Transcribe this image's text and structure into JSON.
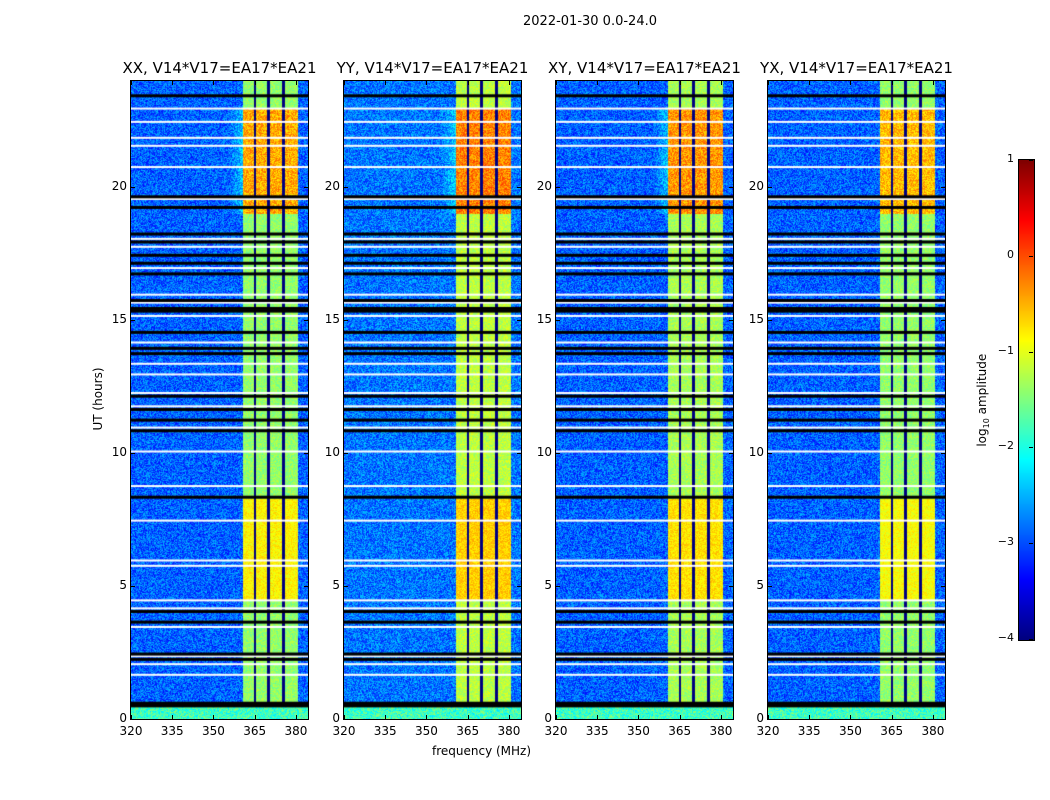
{
  "chart_data": {
    "type": "heatmap",
    "title": "2022-01-30 0.0-24.0",
    "xlabel": "frequency (MHz)",
    "ylabel": "UT (hours)",
    "xlim": [
      320,
      384.4
    ],
    "ylim": [
      0,
      24
    ],
    "xticks": [
      "320",
      "335",
      "350",
      "365",
      "380"
    ],
    "xtick_values": [
      320,
      335,
      350,
      365,
      380
    ],
    "yticks": [
      "0",
      "5",
      "10",
      "15",
      "20"
    ],
    "ytick_values": [
      0,
      5,
      10,
      15,
      20
    ],
    "panels": [
      {
        "title": "XX, V14*V17=EA17*EA21",
        "background_log_amp": -2.9,
        "band_log_amp": -1.4,
        "band_peak_log_amp": -0.3
      },
      {
        "title": "YY, V14*V17=EA17*EA21",
        "background_log_amp": -2.8,
        "band_log_amp": -1.2,
        "band_peak_log_amp": -0.1
      },
      {
        "title": "XY, V14*V17=EA17*EA21",
        "background_log_amp": -2.9,
        "band_log_amp": -1.3,
        "band_peak_log_amp": -0.2
      },
      {
        "title": "YX, V14*V17=EA17*EA21",
        "background_log_amp": -2.9,
        "band_log_amp": -1.4,
        "band_peak_log_amp": -0.4
      }
    ],
    "rfi_band_mhz": [
      360.7,
      380.4
    ],
    "rfi_subband_edges_mhz": [
      365.0,
      369.8,
      375.3
    ],
    "bright_periods_ut": [
      [
        19.0,
        23.0
      ],
      [
        4.5,
        8.3
      ]
    ],
    "flagged_white_ut": [
      0.6,
      1.7,
      2.1,
      2.4,
      3.5,
      4.2,
      4.5,
      5.8,
      6.0,
      7.5,
      8.8,
      10.1,
      11.0,
      11.8,
      12.3,
      13.0,
      13.4,
      14.2,
      15.2,
      15.7,
      16.0,
      17.0,
      17.8,
      18.1,
      19.6,
      20.8,
      21.6,
      21.9,
      22.5,
      23.0
    ],
    "flagged_black_ut": [
      0.55,
      2.3,
      2.5,
      3.7,
      4.1,
      8.4,
      10.9,
      11.3,
      11.7,
      12.2,
      13.8,
      14.0,
      14.6,
      15.4,
      15.5,
      15.8,
      16.8,
      17.2,
      17.5,
      18.0,
      18.3,
      19.3,
      19.7,
      23.5
    ],
    "colorbar": {
      "label": "log10 amplitude",
      "label_main": "log",
      "label_sub": "10",
      "label_rest": " amplitude",
      "range": [
        -4,
        1
      ],
      "ticks": [
        "1",
        "0",
        "−1",
        "−2",
        "−3",
        "−4"
      ],
      "tick_values": [
        1,
        0,
        -1,
        -2,
        -3,
        -4
      ],
      "colormap": "jet"
    }
  }
}
